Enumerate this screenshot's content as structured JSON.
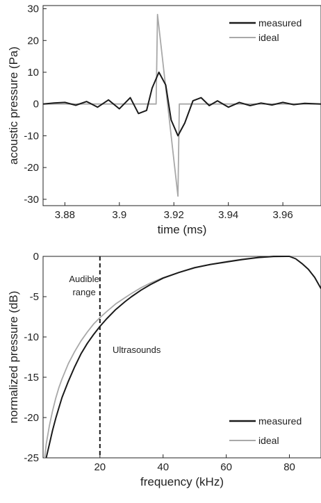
{
  "colors": {
    "measured": "#1a1a1a",
    "ideal": "#a8a8a8",
    "axis": "#222222",
    "background": "#ffffff"
  },
  "chart_data": [
    {
      "type": "line",
      "xlabel": "time (ms)",
      "ylabel": "acoustic pressure (Pa)",
      "xlim": [
        3.872,
        3.974
      ],
      "ylim": [
        -32,
        31
      ],
      "xticks": [
        3.88,
        3.9,
        3.92,
        3.94,
        3.96
      ],
      "xtick_labels": [
        "3.88",
        "3.9",
        "3.92",
        "3.94",
        "3.96"
      ],
      "yticks": [
        30,
        20,
        10,
        0,
        -10,
        -20,
        -30
      ],
      "ytick_labels": [
        "30",
        "20",
        "10",
        "0",
        "-10",
        "-20",
        "-30"
      ],
      "grid": false,
      "legend_position": "top-right",
      "series": [
        {
          "name": "measured",
          "color": "#1a1a1a",
          "x": [
            3.872,
            3.876,
            3.88,
            3.884,
            3.888,
            3.892,
            3.896,
            3.9,
            3.904,
            3.907,
            3.91,
            3.912,
            3.9145,
            3.917,
            3.919,
            3.9215,
            3.924,
            3.927,
            3.93,
            3.933,
            3.936,
            3.94,
            3.944,
            3.948,
            3.952,
            3.956,
            3.96,
            3.964,
            3.968,
            3.974
          ],
          "y": [
            0,
            0.3,
            0.5,
            -0.4,
            0.8,
            -1.0,
            1.3,
            -1.5,
            2.0,
            -3.0,
            -2.0,
            5.0,
            10.0,
            6.0,
            -5.0,
            -10.0,
            -6.0,
            1.0,
            2.0,
            -0.5,
            1.0,
            -1.0,
            0.5,
            -0.5,
            0.3,
            -0.3,
            0.5,
            -0.2,
            0.2,
            0.0
          ]
        },
        {
          "name": "ideal",
          "color": "#a8a8a8",
          "x": [
            3.872,
            3.9135,
            3.914,
            3.9215,
            3.922,
            3.974
          ],
          "y": [
            0,
            0,
            28.2,
            -29.0,
            0,
            0
          ]
        }
      ]
    },
    {
      "type": "line",
      "xlabel": "frequency (kHz)",
      "ylabel": "normalized pressure (dB)",
      "xlim": [
        2,
        90
      ],
      "ylim": [
        -25,
        0
      ],
      "xticks": [
        20,
        40,
        60,
        80
      ],
      "xtick_labels": [
        "20",
        "40",
        "60",
        "80"
      ],
      "yticks": [
        0,
        -5,
        -10,
        -15,
        -20,
        -25
      ],
      "ytick_labels": [
        "0",
        "-5",
        "-10",
        "-15",
        "-20",
        "-25"
      ],
      "grid": false,
      "legend_position": "bottom-right",
      "annotations": {
        "divider_x": 20,
        "audible_line1": "Audible",
        "audible_line2": "range",
        "audible_x": 15,
        "audible_y": -3.2,
        "ultrasounds": "Ultrasounds",
        "ultrasounds_x": 24,
        "ultrasounds_y": -12.0
      },
      "series": [
        {
          "name": "measured",
          "color": "#1a1a1a",
          "x": [
            3,
            4,
            5,
            6,
            7,
            8,
            10,
            12,
            14,
            16,
            18,
            20,
            22,
            25,
            28,
            30,
            33,
            36,
            40,
            45,
            50,
            55,
            60,
            65,
            70,
            75,
            78,
            80,
            82,
            84,
            86,
            88,
            90
          ],
          "y": [
            -25,
            -23.3,
            -21.6,
            -20.1,
            -18.8,
            -17.5,
            -15.5,
            -13.7,
            -12.1,
            -10.8,
            -9.7,
            -8.7,
            -7.8,
            -6.6,
            -5.6,
            -5.0,
            -4.2,
            -3.5,
            -2.7,
            -2.0,
            -1.4,
            -1.0,
            -0.7,
            -0.4,
            -0.15,
            0,
            0,
            0,
            -0.3,
            -0.9,
            -1.6,
            -2.6,
            -4.0
          ]
        },
        {
          "name": "ideal",
          "color": "#a8a8a8",
          "x": [
            2.5,
            3,
            4,
            5,
            6,
            7,
            8,
            10,
            12,
            14,
            16,
            18,
            20,
            22,
            25,
            28,
            30,
            33,
            36,
            40,
            45,
            50,
            55,
            60,
            65,
            70,
            75,
            80,
            85,
            90
          ],
          "y": [
            -25,
            -23.3,
            -21.0,
            -19.2,
            -17.6,
            -16.3,
            -15.2,
            -13.3,
            -11.8,
            -10.5,
            -9.4,
            -8.4,
            -7.6,
            -6.9,
            -5.9,
            -5.1,
            -4.6,
            -3.9,
            -3.3,
            -2.65,
            -2.0,
            -1.45,
            -1.0,
            -0.65,
            -0.35,
            -0.15,
            -0.05,
            0,
            0,
            0
          ]
        }
      ]
    }
  ]
}
